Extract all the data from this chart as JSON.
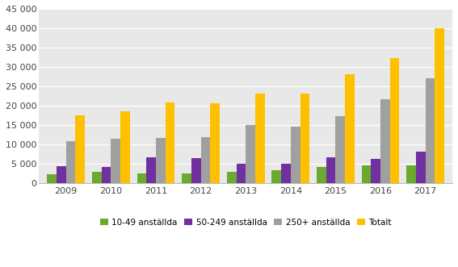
{
  "years": [
    2009,
    2010,
    2011,
    2012,
    2013,
    2014,
    2015,
    2016,
    2017
  ],
  "series": {
    "10-49 anställda": [
      2200,
      2800,
      2500,
      2400,
      2800,
      3200,
      4100,
      4500,
      4600
    ],
    "50-249 anställda": [
      4400,
      4200,
      6500,
      6300,
      5000,
      5000,
      6700,
      6100,
      8100
    ],
    "250+ anställda": [
      10800,
      11500,
      11700,
      11800,
      14900,
      14600,
      17200,
      21600,
      27000
    ],
    "Totalt": [
      17500,
      18400,
      20800,
      20500,
      23000,
      23000,
      28000,
      32300,
      40000
    ]
  },
  "colors": {
    "10-49 anställda": "#6aaa2e",
    "50-249 anställda": "#7030a0",
    "250+ anställda": "#a0a0a0",
    "Totalt": "#ffc000"
  },
  "ylim": [
    0,
    45000
  ],
  "yticks": [
    0,
    5000,
    10000,
    15000,
    20000,
    25000,
    30000,
    35000,
    40000,
    45000
  ],
  "figure_bg": "#ffffff",
  "plot_area_color": "#e8e8e8",
  "bar_width": 0.21,
  "legend_labels": [
    "10-49 anställda",
    "50-249 anställda",
    "250+ anställda",
    "Totalt"
  ]
}
